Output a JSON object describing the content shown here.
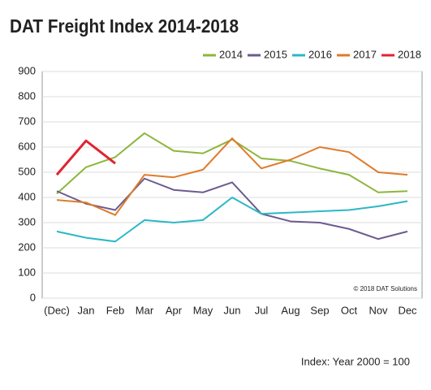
{
  "chart_data": {
    "type": "line",
    "title": "DAT Freight Index 2014-2018",
    "categories": [
      "(Dec)",
      "Jan",
      "Feb",
      "Mar",
      "Apr",
      "May",
      "Jun",
      "Jul",
      "Aug",
      "Sep",
      "Oct",
      "Nov",
      "Dec"
    ],
    "series": [
      {
        "name": "2014",
        "color": "#8db63c",
        "values": [
          415,
          520,
          560,
          655,
          585,
          575,
          630,
          555,
          545,
          515,
          490,
          420,
          425
        ]
      },
      {
        "name": "2015",
        "color": "#6c5b8f",
        "values": [
          425,
          375,
          350,
          475,
          430,
          420,
          460,
          335,
          305,
          300,
          275,
          235,
          265
        ]
      },
      {
        "name": "2016",
        "color": "#2bb8c6",
        "values": [
          265,
          240,
          225,
          310,
          300,
          310,
          400,
          335,
          340,
          345,
          350,
          365,
          385
        ]
      },
      {
        "name": "2017",
        "color": "#e07b2a",
        "values": [
          390,
          380,
          330,
          490,
          480,
          510,
          635,
          515,
          550,
          600,
          580,
          500,
          490
        ]
      },
      {
        "name": "2018",
        "color": "#e0242f",
        "values": [
          490,
          625,
          535,
          null,
          null,
          null,
          null,
          null,
          null,
          null,
          null,
          null,
          null
        ]
      }
    ],
    "ylim": [
      0,
      900
    ],
    "yticks": [
      0,
      100,
      200,
      300,
      400,
      500,
      600,
      700,
      800,
      900
    ],
    "grid": true,
    "legend": "top-right",
    "annotations": [
      "© 2018 DAT Solutions",
      "Index: Year 2000 = 100"
    ]
  }
}
